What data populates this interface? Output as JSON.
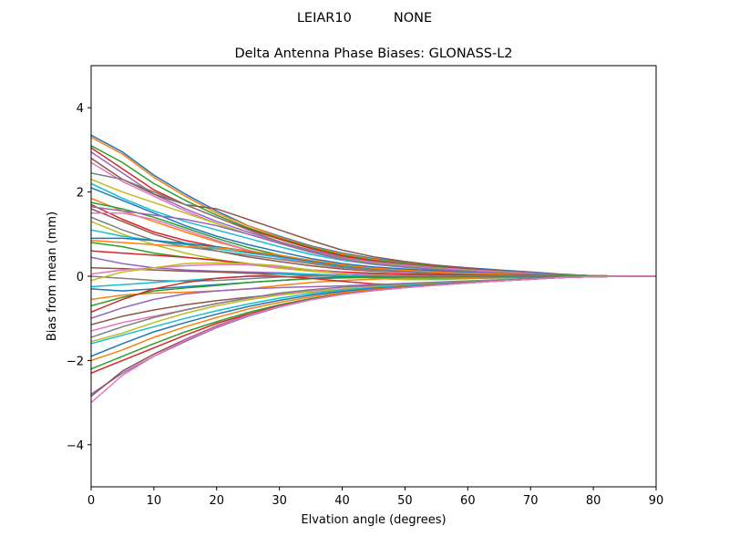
{
  "figure": {
    "suptitle": "LEIAR10          NONE"
  },
  "chart_data": {
    "type": "line",
    "title": "Delta Antenna Phase Biases: GLONASS-L2",
    "xlabel": "Elvation angle (degrees)",
    "ylabel": "Bias from mean (mm)",
    "xlim": [
      0,
      90
    ],
    "ylim": [
      -5,
      5
    ],
    "xticks": [
      0,
      10,
      20,
      30,
      40,
      50,
      60,
      70,
      80,
      90
    ],
    "yticks": [
      -4,
      -2,
      0,
      2,
      4
    ],
    "ytick_labels": [
      "−4",
      "−2",
      "0",
      "2",
      "4"
    ],
    "grid": false,
    "legend": "none",
    "colors": [
      "#1f77b4",
      "#ff7f0e",
      "#2ca02c",
      "#d62728",
      "#9467bd",
      "#8c564b",
      "#e377c2",
      "#7f7f7f",
      "#bcbd22",
      "#17becf"
    ],
    "x": [
      0,
      5,
      10,
      15,
      20,
      25,
      30,
      35,
      40,
      45,
      50,
      55,
      60,
      65,
      70,
      75,
      80,
      85,
      90
    ],
    "series": [
      {
        "values": [
          3.35,
          2.95,
          2.4,
          1.95,
          1.55,
          1.2,
          0.95,
          0.72,
          0.55,
          0.42,
          0.33,
          0.26,
          0.2,
          0.15,
          0.1,
          0.05,
          0.01,
          0.0,
          0.0
        ]
      },
      {
        "values": [
          3.3,
          2.9,
          2.35,
          1.9,
          1.5,
          1.2,
          0.93,
          0.7,
          0.53,
          0.4,
          0.31,
          0.24,
          0.18,
          0.13,
          0.08,
          0.04,
          0.01,
          0.0,
          0.0
        ]
      },
      {
        "values": [
          3.1,
          2.7,
          2.2,
          1.8,
          1.45,
          1.15,
          0.9,
          0.68,
          0.5,
          0.38,
          0.3,
          0.23,
          0.17,
          0.12,
          0.08,
          0.04,
          0.01,
          0.0,
          0.0
        ]
      },
      {
        "values": [
          3.05,
          2.55,
          2.05,
          1.7,
          1.4,
          1.12,
          0.88,
          0.66,
          0.48,
          0.36,
          0.28,
          0.21,
          0.16,
          0.12,
          0.08,
          0.04,
          0.01,
          0.0,
          0.0
        ]
      },
      {
        "values": [
          2.95,
          2.45,
          1.95,
          1.6,
          1.3,
          1.05,
          0.82,
          0.62,
          0.45,
          0.34,
          0.27,
          0.2,
          0.15,
          0.11,
          0.07,
          0.03,
          0.01,
          0.0,
          0.0
        ]
      },
      {
        "values": [
          2.8,
          2.3,
          1.95,
          1.7,
          1.6,
          1.35,
          1.1,
          0.85,
          0.62,
          0.46,
          0.35,
          0.26,
          0.19,
          0.13,
          0.08,
          0.04,
          0.01,
          0.0,
          0.0
        ]
      },
      {
        "values": [
          2.7,
          2.25,
          1.9,
          1.55,
          1.25,
          1.0,
          0.8,
          0.6,
          0.44,
          0.33,
          0.26,
          0.2,
          0.15,
          0.11,
          0.07,
          0.03,
          0.01,
          0.0,
          0.0
        ]
      },
      {
        "values": [
          2.45,
          2.3,
          2.0,
          1.7,
          1.4,
          1.1,
          0.82,
          0.6,
          0.43,
          0.31,
          0.24,
          0.18,
          0.13,
          0.09,
          0.06,
          0.03,
          0.01,
          0.0,
          0.0
        ]
      },
      {
        "values": [
          2.3,
          2.0,
          1.75,
          1.5,
          1.25,
          1.0,
          0.78,
          0.57,
          0.41,
          0.3,
          0.23,
          0.17,
          0.13,
          0.09,
          0.06,
          0.03,
          0.01,
          0.0,
          0.0
        ]
      },
      {
        "values": [
          2.2,
          1.85,
          1.55,
          1.3,
          1.1,
          0.9,
          0.7,
          0.52,
          0.38,
          0.28,
          0.21,
          0.16,
          0.12,
          0.08,
          0.05,
          0.03,
          0.01,
          0.0,
          0.0
        ]
      },
      {
        "values": [
          2.1,
          1.8,
          1.5,
          1.2,
          0.95,
          0.75,
          0.58,
          0.42,
          0.3,
          0.22,
          0.17,
          0.13,
          0.1,
          0.07,
          0.05,
          0.02,
          0.01,
          0.0,
          0.0
        ]
      },
      {
        "values": [
          1.85,
          1.55,
          1.3,
          1.05,
          0.82,
          0.62,
          0.46,
          0.32,
          0.22,
          0.16,
          0.12,
          0.09,
          0.07,
          0.05,
          0.03,
          0.02,
          0.01,
          0.0,
          0.0
        ]
      },
      {
        "values": [
          1.75,
          1.6,
          1.4,
          1.15,
          0.9,
          0.68,
          0.5,
          0.35,
          0.24,
          0.17,
          0.13,
          0.1,
          0.07,
          0.05,
          0.03,
          0.02,
          0.01,
          0.0,
          0.0
        ]
      },
      {
        "values": [
          1.7,
          1.35,
          1.05,
          0.85,
          0.7,
          0.58,
          0.46,
          0.35,
          0.26,
          0.19,
          0.14,
          0.1,
          0.07,
          0.05,
          0.03,
          0.02,
          0.01,
          0.0,
          0.0
        ]
      },
      {
        "values": [
          1.65,
          1.55,
          1.45,
          1.35,
          1.2,
          1.0,
          0.78,
          0.57,
          0.4,
          0.29,
          0.22,
          0.16,
          0.12,
          0.08,
          0.05,
          0.03,
          0.01,
          0.0,
          0.0
        ]
      },
      {
        "values": [
          1.6,
          1.3,
          1.0,
          0.78,
          0.6,
          0.46,
          0.35,
          0.25,
          0.17,
          0.12,
          0.09,
          0.07,
          0.05,
          0.04,
          0.03,
          0.02,
          0.01,
          0.0,
          0.0
        ]
      },
      {
        "values": [
          1.5,
          1.5,
          1.35,
          1.1,
          0.85,
          0.62,
          0.44,
          0.3,
          0.2,
          0.14,
          0.1,
          0.08,
          0.06,
          0.04,
          0.03,
          0.02,
          0.01,
          0.0,
          0.0
        ]
      },
      {
        "values": [
          1.4,
          1.1,
          0.85,
          0.7,
          0.6,
          0.5,
          0.4,
          0.3,
          0.21,
          0.15,
          0.11,
          0.08,
          0.06,
          0.04,
          0.03,
          0.02,
          0.01,
          0.0,
          0.0
        ]
      },
      {
        "values": [
          1.3,
          1.0,
          0.75,
          0.55,
          0.4,
          0.28,
          0.19,
          0.12,
          0.07,
          0.04,
          0.03,
          0.02,
          0.02,
          0.01,
          0.01,
          0.01,
          0.0,
          0.0,
          0.0
        ]
      },
      {
        "values": [
          1.1,
          0.95,
          0.85,
          0.75,
          0.65,
          0.55,
          0.45,
          0.35,
          0.25,
          0.18,
          0.13,
          0.1,
          0.07,
          0.05,
          0.03,
          0.02,
          0.01,
          0.0,
          0.0
        ]
      },
      {
        "values": [
          0.9,
          0.9,
          0.85,
          0.78,
          0.7,
          0.6,
          0.48,
          0.36,
          0.26,
          0.18,
          0.13,
          0.1,
          0.07,
          0.05,
          0.03,
          0.02,
          0.01,
          0.0,
          0.0
        ]
      },
      {
        "values": [
          0.85,
          0.8,
          0.75,
          0.7,
          0.68,
          0.6,
          0.5,
          0.38,
          0.27,
          0.19,
          0.14,
          0.1,
          0.07,
          0.05,
          0.03,
          0.02,
          0.01,
          0.0,
          0.0
        ]
      },
      {
        "values": [
          0.8,
          0.7,
          0.55,
          0.45,
          0.38,
          0.3,
          0.22,
          0.15,
          0.1,
          0.07,
          0.05,
          0.04,
          0.03,
          0.02,
          0.02,
          0.01,
          0.0,
          0.0,
          0.0
        ]
      },
      {
        "values": [
          0.6,
          0.55,
          0.5,
          0.45,
          0.38,
          0.3,
          0.22,
          0.15,
          0.1,
          0.07,
          0.05,
          0.04,
          0.03,
          0.02,
          0.02,
          0.01,
          0.0,
          0.0,
          0.0
        ]
      },
      {
        "values": [
          0.45,
          0.3,
          0.2,
          0.15,
          0.12,
          0.1,
          0.08,
          0.05,
          0.03,
          0.02,
          0.02,
          0.01,
          0.01,
          0.01,
          0.0,
          0.0,
          0.0,
          0.0,
          0.0
        ]
      },
      {
        "values": [
          0.2,
          0.18,
          0.15,
          0.12,
          0.1,
          0.07,
          0.05,
          0.02,
          0.0,
          -0.01,
          -0.01,
          -0.01,
          -0.01,
          0.0,
          0.0,
          0.0,
          0.0,
          0.0,
          0.0
        ]
      },
      {
        "values": [
          0.05,
          0.15,
          0.2,
          0.25,
          0.28,
          0.27,
          0.22,
          0.15,
          0.08,
          0.03,
          0.01,
          0.0,
          0.0,
          0.0,
          0.0,
          0.0,
          0.0,
          0.0,
          0.0
        ]
      },
      {
        "values": [
          0.0,
          -0.05,
          -0.1,
          -0.12,
          -0.1,
          -0.06,
          -0.02,
          0.0,
          0.01,
          0.01,
          0.0,
          0.0,
          0.0,
          0.0,
          0.0,
          0.0,
          0.0,
          0.0,
          0.0
        ]
      },
      {
        "values": [
          -0.1,
          0.1,
          0.2,
          0.3,
          0.32,
          0.3,
          0.25,
          0.15,
          0.05,
          -0.05,
          -0.08,
          -0.08,
          -0.06,
          -0.04,
          -0.02,
          -0.01,
          0.0,
          0.0,
          0.0
        ]
      },
      {
        "values": [
          -0.25,
          -0.2,
          -0.15,
          -0.1,
          -0.05,
          0.0,
          0.05,
          0.05,
          0.02,
          -0.02,
          -0.05,
          -0.06,
          -0.05,
          -0.04,
          -0.02,
          -0.01,
          0.0,
          0.0,
          0.0
        ]
      },
      {
        "values": [
          -0.3,
          -0.35,
          -0.3,
          -0.25,
          -0.2,
          -0.15,
          -0.1,
          -0.05,
          -0.02,
          -0.02,
          -0.03,
          -0.03,
          -0.02,
          -0.02,
          -0.01,
          -0.01,
          0.0,
          0.0,
          0.0
        ]
      },
      {
        "values": [
          -0.55,
          -0.45,
          -0.4,
          -0.38,
          -0.35,
          -0.3,
          -0.22,
          -0.15,
          -0.1,
          -0.07,
          -0.05,
          -0.04,
          -0.03,
          -0.02,
          -0.01,
          -0.01,
          0.0,
          0.0,
          0.0
        ]
      },
      {
        "values": [
          -0.7,
          -0.5,
          -0.35,
          -0.28,
          -0.22,
          -0.15,
          -0.1,
          -0.06,
          -0.04,
          -0.03,
          -0.02,
          -0.02,
          -0.01,
          -0.01,
          -0.01,
          0.0,
          0.0,
          0.0,
          0.0
        ]
      },
      {
        "values": [
          -0.85,
          -0.55,
          -0.3,
          -0.15,
          -0.05,
          0.0,
          0.0,
          -0.05,
          -0.12,
          -0.18,
          -0.2,
          -0.18,
          -0.15,
          -0.11,
          -0.07,
          -0.03,
          -0.01,
          0.0,
          0.0
        ]
      },
      {
        "values": [
          -1.0,
          -0.75,
          -0.55,
          -0.42,
          -0.35,
          -0.3,
          -0.27,
          -0.25,
          -0.23,
          -0.2,
          -0.17,
          -0.14,
          -0.11,
          -0.08,
          -0.05,
          -0.02,
          -0.01,
          0.0,
          0.0
        ]
      },
      {
        "values": [
          -1.15,
          -0.95,
          -0.8,
          -0.68,
          -0.58,
          -0.5,
          -0.43,
          -0.37,
          -0.31,
          -0.26,
          -0.21,
          -0.17,
          -0.13,
          -0.09,
          -0.06,
          -0.03,
          -0.01,
          0.0,
          0.0
        ]
      },
      {
        "values": [
          -1.3,
          -1.1,
          -0.95,
          -0.8,
          -0.65,
          -0.52,
          -0.42,
          -0.35,
          -0.3,
          -0.25,
          -0.2,
          -0.16,
          -0.12,
          -0.09,
          -0.06,
          -0.03,
          -0.01,
          0.0,
          0.0
        ]
      },
      {
        "values": [
          -1.45,
          -1.2,
          -0.98,
          -0.8,
          -0.65,
          -0.52,
          -0.4,
          -0.32,
          -0.26,
          -0.22,
          -0.18,
          -0.15,
          -0.12,
          -0.09,
          -0.06,
          -0.03,
          -0.01,
          0.0,
          0.0
        ]
      },
      {
        "values": [
          -1.55,
          -1.35,
          -1.1,
          -0.88,
          -0.7,
          -0.56,
          -0.45,
          -0.37,
          -0.31,
          -0.26,
          -0.21,
          -0.17,
          -0.13,
          -0.09,
          -0.06,
          -0.03,
          -0.01,
          0.0,
          0.0
        ]
      },
      {
        "values": [
          -1.6,
          -1.4,
          -1.2,
          -1.0,
          -0.82,
          -0.66,
          -0.52,
          -0.41,
          -0.33,
          -0.27,
          -0.22,
          -0.18,
          -0.14,
          -0.1,
          -0.06,
          -0.03,
          -0.01,
          0.0,
          0.0
        ]
      },
      {
        "values": [
          -1.9,
          -1.6,
          -1.32,
          -1.1,
          -0.9,
          -0.72,
          -0.57,
          -0.45,
          -0.36,
          -0.29,
          -0.24,
          -0.19,
          -0.14,
          -0.1,
          -0.06,
          -0.03,
          -0.01,
          0.0,
          0.0
        ]
      },
      {
        "values": [
          -2.0,
          -1.75,
          -1.45,
          -1.2,
          -0.98,
          -0.78,
          -0.62,
          -0.49,
          -0.39,
          -0.31,
          -0.25,
          -0.2,
          -0.15,
          -0.11,
          -0.07,
          -0.03,
          -0.01,
          0.0,
          0.0
        ]
      },
      {
        "values": [
          -2.2,
          -1.9,
          -1.6,
          -1.32,
          -1.08,
          -0.86,
          -0.68,
          -0.53,
          -0.42,
          -0.33,
          -0.26,
          -0.21,
          -0.16,
          -0.11,
          -0.07,
          -0.03,
          -0.01,
          0.0,
          0.0
        ]
      },
      {
        "values": [
          -2.3,
          -2.0,
          -1.7,
          -1.4,
          -1.12,
          -0.9,
          -0.7,
          -0.55,
          -0.43,
          -0.34,
          -0.27,
          -0.21,
          -0.16,
          -0.11,
          -0.07,
          -0.03,
          -0.01,
          0.0,
          0.0
        ]
      },
      {
        "values": [
          -2.8,
          -2.3,
          -1.9,
          -1.55,
          -1.22,
          -0.95,
          -0.73,
          -0.56,
          -0.43,
          -0.34,
          -0.27,
          -0.21,
          -0.16,
          -0.11,
          -0.07,
          -0.03,
          -0.01,
          0.0,
          0.0
        ]
      },
      {
        "values": [
          -2.85,
          -2.25,
          -1.85,
          -1.5,
          -1.18,
          -0.92,
          -0.71,
          -0.55,
          -0.42,
          -0.33,
          -0.26,
          -0.2,
          -0.15,
          -0.11,
          -0.07,
          -0.03,
          -0.01,
          0.0,
          0.0
        ]
      },
      {
        "values": [
          -3.0,
          -2.35,
          -1.9,
          -1.52,
          -1.2,
          -0.93,
          -0.72,
          -0.56,
          -0.43,
          -0.34,
          -0.27,
          -0.21,
          -0.16,
          -0.11,
          -0.07,
          -0.03,
          -0.01,
          0.0,
          0.0
        ]
      }
    ]
  }
}
